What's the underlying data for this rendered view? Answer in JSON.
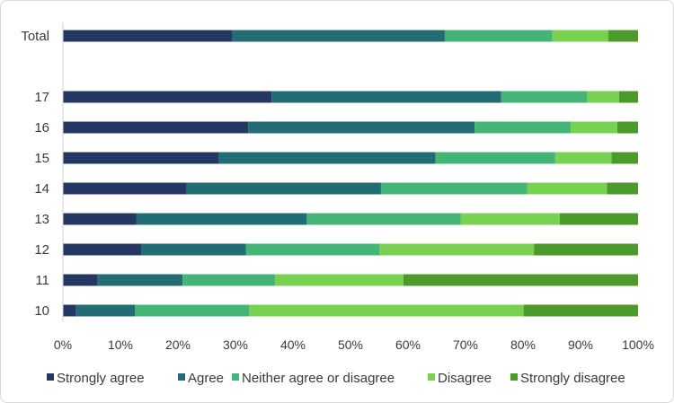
{
  "chart_data": {
    "type": "bar",
    "orientation": "horizontal",
    "stacked": "percent",
    "categories": [
      "Total",
      "",
      "17",
      "16",
      "15",
      "14",
      "13",
      "12",
      "11",
      "10"
    ],
    "series": [
      {
        "name": "Strongly agree",
        "color": "#253864",
        "values": [
          29.5,
          null,
          36.3,
          32.2,
          27.1,
          21.5,
          12.8,
          13.6,
          6.0,
          2.3
        ]
      },
      {
        "name": "Agree",
        "color": "#226D74",
        "values": [
          36.9,
          null,
          39.9,
          39.4,
          37.7,
          33.8,
          29.6,
          18.2,
          14.8,
          10.2
        ]
      },
      {
        "name": "Neither agree or disagree",
        "color": "#44B577",
        "values": [
          18.7,
          null,
          15.0,
          16.7,
          20.8,
          25.4,
          26.8,
          23.2,
          16.1,
          19.9
        ]
      },
      {
        "name": "Disagree",
        "color": "#79D152",
        "values": [
          9.7,
          null,
          5.5,
          8.1,
          9.8,
          13.9,
          17.2,
          26.9,
          22.3,
          47.7
        ]
      },
      {
        "name": "Strongly disagree",
        "color": "#4B9A2B",
        "values": [
          5.2,
          null,
          3.3,
          3.6,
          4.6,
          5.4,
          13.6,
          18.1,
          40.8,
          19.9
        ]
      }
    ],
    "xlim": [
      0,
      100
    ],
    "x_ticks": [
      "0%",
      "10%",
      "20%",
      "30%",
      "40%",
      "50%",
      "60%",
      "70%",
      "80%",
      "90%",
      "100%"
    ],
    "grid": false,
    "legend_position": "bottom"
  }
}
